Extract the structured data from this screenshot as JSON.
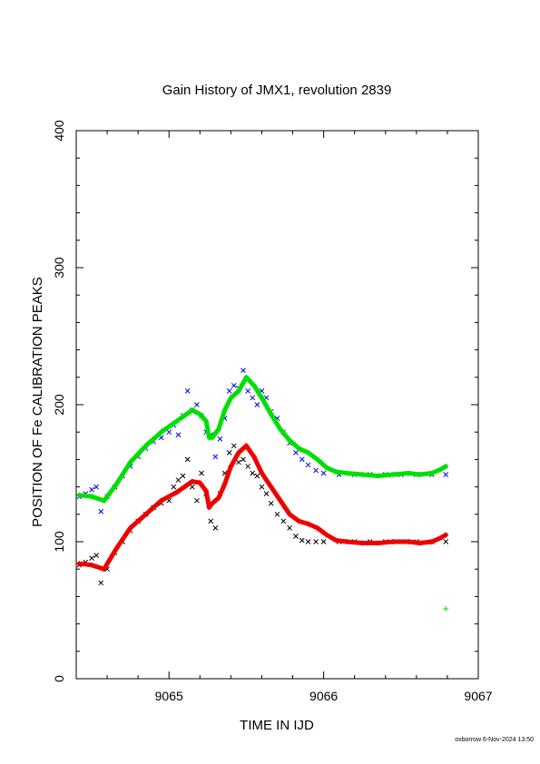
{
  "chart_data": {
    "type": "scatter",
    "title": "Gain History of JMX1, revolution 2839",
    "xlabel": "TIME IN IJD",
    "ylabel": "POSITION OF Fe CALIBRATION PEAKS",
    "xlim": [
      9064.4,
      9067
    ],
    "ylim": [
      0,
      400
    ],
    "x_ticks": [
      9065,
      9066,
      9067
    ],
    "y_ticks": [
      0,
      100,
      200,
      300,
      400
    ],
    "x_tick_labels": [
      "9065",
      "9066",
      "9067"
    ],
    "y_tick_labels": [
      "0",
      "100",
      "200",
      "300",
      "400"
    ],
    "footer": "oxborrow 6-Nov-2024 13:50",
    "grid": false,
    "series": [
      {
        "marker": "x",
        "color": "#0000ff",
        "style": "scatter",
        "x": [
          9064.42,
          9064.46,
          9064.5,
          9064.53,
          9064.56,
          9064.6,
          9064.65,
          9064.7,
          9064.75,
          9064.8,
          9064.85,
          9064.9,
          9064.95,
          9065.0,
          9065.03,
          9065.06,
          9065.09,
          9065.12,
          9065.15,
          9065.18,
          9065.21,
          9065.24,
          9065.27,
          9065.3,
          9065.33,
          9065.36,
          9065.39,
          9065.42,
          9065.45,
          9065.48,
          9065.51,
          9065.54,
          9065.57,
          9065.6,
          9065.63,
          9065.66,
          9065.7,
          9065.74,
          9065.78,
          9065.82,
          9065.86,
          9065.9,
          9065.95,
          9066.0,
          9066.1,
          9066.2,
          9066.3,
          9066.4,
          9066.5,
          9066.6,
          9066.7,
          9066.79
        ],
        "y": [
          133,
          135,
          138,
          140,
          122,
          133,
          140,
          148,
          155,
          162,
          168,
          173,
          176,
          180,
          185,
          178,
          192,
          210,
          196,
          200,
          192,
          180,
          178,
          162,
          175,
          190,
          210,
          214,
          212,
          225,
          210,
          205,
          200,
          210,
          205,
          195,
          190,
          180,
          172,
          165,
          160,
          156,
          152,
          150,
          149,
          149,
          149,
          149,
          149,
          149,
          149,
          149
        ]
      },
      {
        "marker": "x",
        "color": "#000000",
        "style": "scatter",
        "x": [
          9064.42,
          9064.46,
          9064.5,
          9064.53,
          9064.56,
          9064.6,
          9064.65,
          9064.7,
          9064.75,
          9064.8,
          9064.85,
          9064.9,
          9064.95,
          9065.0,
          9065.03,
          9065.06,
          9065.09,
          9065.12,
          9065.15,
          9065.18,
          9065.21,
          9065.24,
          9065.27,
          9065.3,
          9065.33,
          9065.36,
          9065.39,
          9065.42,
          9065.45,
          9065.48,
          9065.51,
          9065.54,
          9065.57,
          9065.6,
          9065.63,
          9065.66,
          9065.7,
          9065.74,
          9065.78,
          9065.82,
          9065.86,
          9065.9,
          9065.95,
          9066.0,
          9066.1,
          9066.2,
          9066.3,
          9066.4,
          9066.5,
          9066.6,
          9066.7,
          9066.79
        ],
        "y": [
          83,
          85,
          88,
          90,
          70,
          80,
          92,
          100,
          108,
          115,
          120,
          125,
          128,
          130,
          140,
          145,
          148,
          160,
          140,
          130,
          150,
          135,
          115,
          110,
          135,
          150,
          165,
          170,
          158,
          160,
          155,
          150,
          148,
          140,
          135,
          128,
          120,
          115,
          110,
          104,
          101,
          100,
          100,
          100,
          100,
          100,
          100,
          100,
          100,
          100,
          100,
          100
        ]
      },
      {
        "marker": "+",
        "color": "#00e000",
        "style": "line",
        "x": [
          9064.42,
          9064.5,
          9064.58,
          9064.66,
          9064.75,
          9064.85,
          9064.95,
          9065.05,
          9065.1,
          9065.15,
          9065.2,
          9065.24,
          9065.26,
          9065.28,
          9065.32,
          9065.36,
          9065.4,
          9065.45,
          9065.5,
          9065.55,
          9065.6,
          9065.66,
          9065.72,
          9065.78,
          9065.84,
          9065.9,
          9065.96,
          9066.02,
          9066.08,
          9066.15,
          9066.25,
          9066.35,
          9066.45,
          9066.55,
          9066.62,
          9066.7,
          9066.76,
          9066.79
        ],
        "y": [
          134,
          133,
          130,
          142,
          158,
          170,
          180,
          188,
          192,
          196,
          193,
          188,
          176,
          176,
          182,
          196,
          205,
          210,
          220,
          214,
          205,
          193,
          182,
          174,
          168,
          165,
          160,
          154,
          151,
          150,
          149,
          148,
          149,
          150,
          149,
          150,
          153,
          155
        ]
      },
      {
        "marker": "+",
        "color": "#ee0000",
        "style": "line",
        "x": [
          9064.42,
          9064.5,
          9064.58,
          9064.66,
          9064.75,
          9064.85,
          9064.95,
          9065.05,
          9065.1,
          9065.15,
          9065.2,
          9065.24,
          9065.26,
          9065.28,
          9065.32,
          9065.36,
          9065.4,
          9065.45,
          9065.5,
          9065.55,
          9065.6,
          9065.66,
          9065.72,
          9065.78,
          9065.84,
          9065.9,
          9065.96,
          9066.02,
          9066.08,
          9066.15,
          9066.25,
          9066.35,
          9066.45,
          9066.55,
          9066.62,
          9066.7,
          9066.76,
          9066.79
        ],
        "y": [
          84,
          83,
          80,
          95,
          110,
          120,
          130,
          136,
          140,
          144,
          143,
          137,
          125,
          128,
          132,
          142,
          155,
          165,
          170,
          162,
          150,
          140,
          130,
          120,
          115,
          113,
          110,
          105,
          101,
          100,
          99,
          99,
          100,
          100,
          99,
          100,
          103,
          105
        ]
      },
      {
        "marker": "+",
        "color": "#00e000",
        "style": "scatter",
        "x": [
          9066.79
        ],
        "y": [
          51
        ]
      }
    ]
  }
}
